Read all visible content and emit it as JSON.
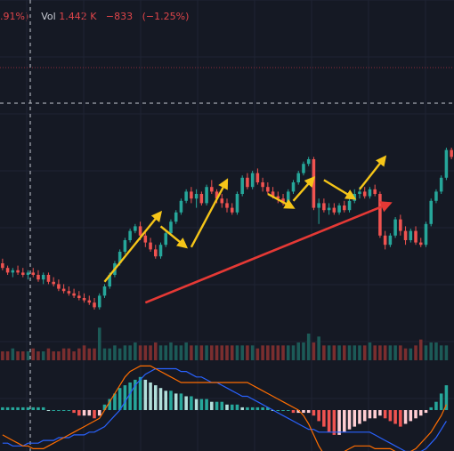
{
  "header": {
    "change_fragment": ".91%)",
    "vol_label": "Vol",
    "vol_value": "1.442 K",
    "vol_change": "−833",
    "vol_change_pct": "(−1.25%)"
  },
  "colors": {
    "background": "#151924",
    "up": "#26a69a",
    "down": "#ef5350",
    "volume_up": "#1c5a57",
    "volume_down": "#7a2e2f",
    "macd_line": "#2962ff",
    "signal_line": "#ff6d00",
    "hist_up_strong": "#26a69a",
    "hist_up_weak": "#b2dfdb",
    "hist_down_strong": "#ef5350",
    "hist_down_weak": "#ffcdd2",
    "annotation_yellow": "#f5c518",
    "annotation_red": "#e53935",
    "price_line": "#8a2a3a",
    "crosshair": "#c8ccd4"
  },
  "chart_data": {
    "type": "candlestick",
    "price_ylim": [
      0,
      100
    ],
    "grid": true,
    "candles": [
      {
        "o": 40,
        "h": 42,
        "l": 37,
        "c": 38
      },
      {
        "o": 38,
        "h": 39,
        "l": 35,
        "c": 36
      },
      {
        "o": 36,
        "h": 38,
        "l": 34,
        "c": 37
      },
      {
        "o": 37,
        "h": 39,
        "l": 35,
        "c": 36
      },
      {
        "o": 36,
        "h": 38,
        "l": 34,
        "c": 35
      },
      {
        "o": 35,
        "h": 37,
        "l": 33,
        "c": 36
      },
      {
        "o": 36,
        "h": 38,
        "l": 34,
        "c": 35
      },
      {
        "o": 35,
        "h": 37,
        "l": 32,
        "c": 33
      },
      {
        "o": 33,
        "h": 36,
        "l": 31,
        "c": 35
      },
      {
        "o": 35,
        "h": 36,
        "l": 31,
        "c": 32
      },
      {
        "o": 32,
        "h": 34,
        "l": 30,
        "c": 31
      },
      {
        "o": 31,
        "h": 33,
        "l": 28,
        "c": 29
      },
      {
        "o": 29,
        "h": 31,
        "l": 27,
        "c": 28
      },
      {
        "o": 28,
        "h": 30,
        "l": 26,
        "c": 27
      },
      {
        "o": 27,
        "h": 29,
        "l": 25,
        "c": 26
      },
      {
        "o": 26,
        "h": 28,
        "l": 24,
        "c": 25
      },
      {
        "o": 25,
        "h": 27,
        "l": 23,
        "c": 24
      },
      {
        "o": 24,
        "h": 26,
        "l": 22,
        "c": 23
      },
      {
        "o": 23,
        "h": 25,
        "l": 20,
        "c": 21
      },
      {
        "o": 21,
        "h": 27,
        "l": 20,
        "c": 26
      },
      {
        "o": 26,
        "h": 31,
        "l": 25,
        "c": 30
      },
      {
        "o": 30,
        "h": 36,
        "l": 29,
        "c": 35
      },
      {
        "o": 35,
        "h": 41,
        "l": 34,
        "c": 40
      },
      {
        "o": 40,
        "h": 46,
        "l": 39,
        "c": 45
      },
      {
        "o": 45,
        "h": 51,
        "l": 44,
        "c": 50
      },
      {
        "o": 50,
        "h": 55,
        "l": 49,
        "c": 54
      },
      {
        "o": 54,
        "h": 57,
        "l": 53,
        "c": 56
      },
      {
        "o": 56,
        "h": 58,
        "l": 50,
        "c": 52
      },
      {
        "o": 52,
        "h": 54,
        "l": 47,
        "c": 49
      },
      {
        "o": 49,
        "h": 51,
        "l": 45,
        "c": 46
      },
      {
        "o": 46,
        "h": 48,
        "l": 42,
        "c": 43
      },
      {
        "o": 43,
        "h": 49,
        "l": 42,
        "c": 48
      },
      {
        "o": 48,
        "h": 54,
        "l": 47,
        "c": 53
      },
      {
        "o": 53,
        "h": 59,
        "l": 52,
        "c": 58
      },
      {
        "o": 58,
        "h": 63,
        "l": 57,
        "c": 62
      },
      {
        "o": 62,
        "h": 68,
        "l": 61,
        "c": 67
      },
      {
        "o": 67,
        "h": 72,
        "l": 66,
        "c": 71
      },
      {
        "o": 71,
        "h": 73,
        "l": 66,
        "c": 68
      },
      {
        "o": 68,
        "h": 72,
        "l": 64,
        "c": 70
      },
      {
        "o": 70,
        "h": 71,
        "l": 65,
        "c": 66
      },
      {
        "o": 66,
        "h": 74,
        "l": 65,
        "c": 73
      },
      {
        "o": 73,
        "h": 76,
        "l": 70,
        "c": 71
      },
      {
        "o": 71,
        "h": 72,
        "l": 66,
        "c": 68
      },
      {
        "o": 68,
        "h": 70,
        "l": 64,
        "c": 66
      },
      {
        "o": 66,
        "h": 68,
        "l": 62,
        "c": 64
      },
      {
        "o": 64,
        "h": 66,
        "l": 61,
        "c": 62
      },
      {
        "o": 62,
        "h": 71,
        "l": 61,
        "c": 70
      },
      {
        "o": 70,
        "h": 78,
        "l": 69,
        "c": 77
      },
      {
        "o": 77,
        "h": 79,
        "l": 72,
        "c": 73
      },
      {
        "o": 73,
        "h": 80,
        "l": 72,
        "c": 79
      },
      {
        "o": 79,
        "h": 81,
        "l": 74,
        "c": 75
      },
      {
        "o": 75,
        "h": 77,
        "l": 71,
        "c": 73
      },
      {
        "o": 73,
        "h": 75,
        "l": 70,
        "c": 71
      },
      {
        "o": 71,
        "h": 73,
        "l": 68,
        "c": 69
      },
      {
        "o": 69,
        "h": 71,
        "l": 66,
        "c": 68
      },
      {
        "o": 68,
        "h": 70,
        "l": 65,
        "c": 66
      },
      {
        "o": 66,
        "h": 72,
        "l": 65,
        "c": 71
      },
      {
        "o": 71,
        "h": 76,
        "l": 70,
        "c": 75
      },
      {
        "o": 75,
        "h": 80,
        "l": 74,
        "c": 79
      },
      {
        "o": 79,
        "h": 84,
        "l": 78,
        "c": 83
      },
      {
        "o": 83,
        "h": 86,
        "l": 82,
        "c": 85
      },
      {
        "o": 85,
        "h": 86,
        "l": 63,
        "c": 64
      },
      {
        "o": 64,
        "h": 68,
        "l": 57,
        "c": 66
      },
      {
        "o": 66,
        "h": 68,
        "l": 62,
        "c": 63
      },
      {
        "o": 63,
        "h": 66,
        "l": 61,
        "c": 64
      },
      {
        "o": 64,
        "h": 66,
        "l": 61,
        "c": 62
      },
      {
        "o": 62,
        "h": 66,
        "l": 61,
        "c": 65
      },
      {
        "o": 65,
        "h": 67,
        "l": 62,
        "c": 63
      },
      {
        "o": 63,
        "h": 68,
        "l": 62,
        "c": 67
      },
      {
        "o": 67,
        "h": 72,
        "l": 66,
        "c": 70
      },
      {
        "o": 70,
        "h": 73,
        "l": 68,
        "c": 71
      },
      {
        "o": 71,
        "h": 73,
        "l": 68,
        "c": 69
      },
      {
        "o": 69,
        "h": 73,
        "l": 68,
        "c": 72
      },
      {
        "o": 72,
        "h": 74,
        "l": 69,
        "c": 70
      },
      {
        "o": 70,
        "h": 71,
        "l": 51,
        "c": 52
      },
      {
        "o": 52,
        "h": 54,
        "l": 46,
        "c": 48
      },
      {
        "o": 48,
        "h": 53,
        "l": 47,
        "c": 52
      },
      {
        "o": 52,
        "h": 60,
        "l": 51,
        "c": 59
      },
      {
        "o": 59,
        "h": 61,
        "l": 52,
        "c": 54
      },
      {
        "o": 54,
        "h": 56,
        "l": 48,
        "c": 50
      },
      {
        "o": 50,
        "h": 55,
        "l": 49,
        "c": 54
      },
      {
        "o": 54,
        "h": 56,
        "l": 48,
        "c": 49
      },
      {
        "o": 49,
        "h": 51,
        "l": 47,
        "c": 48
      },
      {
        "o": 48,
        "h": 58,
        "l": 47,
        "c": 57
      },
      {
        "o": 57,
        "h": 68,
        "l": 56,
        "c": 67
      },
      {
        "o": 67,
        "h": 72,
        "l": 66,
        "c": 71
      },
      {
        "o": 71,
        "h": 78,
        "l": 70,
        "c": 77
      },
      {
        "o": 77,
        "h": 90,
        "l": 76,
        "c": 89
      },
      {
        "o": 89,
        "h": 90,
        "l": 85,
        "c": 86
      }
    ],
    "volume": [
      3,
      3,
      4,
      3,
      3,
      3,
      4,
      3,
      3,
      4,
      3,
      3,
      4,
      4,
      3,
      4,
      5,
      4,
      4,
      5,
      4,
      4,
      5,
      4,
      5,
      5,
      6,
      5,
      5,
      5,
      6,
      5,
      5,
      6,
      5,
      5,
      6,
      5,
      5,
      5,
      5,
      5,
      5,
      5,
      5,
      5,
      5,
      5,
      5,
      5,
      4,
      5,
      5,
      5,
      5,
      5,
      5,
      5,
      6,
      6,
      8,
      6,
      6,
      5,
      5,
      5,
      5,
      5,
      5,
      5,
      5,
      5,
      6,
      5,
      5,
      5,
      5,
      5,
      5,
      4,
      4,
      5,
      5,
      5,
      6,
      6,
      5,
      5
    ],
    "volume_ylim": [
      0,
      12
    ],
    "volume_spikes": [
      {
        "i": 19,
        "v": 11
      },
      {
        "i": 60,
        "v": 9
      },
      {
        "i": 62,
        "v": 8
      },
      {
        "i": 82,
        "v": 7
      }
    ],
    "macd": {
      "ylim": [
        -20,
        20
      ],
      "histogram": [
        1,
        1,
        1,
        1,
        1,
        1,
        1,
        1,
        1,
        0,
        0,
        0,
        0,
        0,
        -1,
        -2,
        -2,
        -2,
        -3,
        -2,
        2,
        4,
        6,
        8,
        9,
        10,
        11,
        12,
        11,
        10,
        9,
        8,
        7,
        7,
        6,
        6,
        5,
        5,
        4,
        4,
        4,
        3,
        3,
        3,
        2,
        2,
        2,
        1,
        1,
        1,
        1,
        1,
        1,
        0,
        0,
        0,
        0,
        -1,
        -1,
        -1,
        -1,
        -2,
        -4,
        -6,
        -8,
        -9,
        -9,
        -8,
        -7,
        -6,
        -5,
        -4,
        -3,
        -3,
        -2,
        -3,
        -4,
        -5,
        -6,
        -5,
        -4,
        -3,
        -2,
        -1,
        1,
        3,
        6,
        9
      ],
      "macd_line": [
        -12,
        -12,
        -13,
        -13,
        -13,
        -12,
        -12,
        -12,
        -11,
        -11,
        -11,
        -10,
        -10,
        -10,
        -9,
        -9,
        -9,
        -8,
        -8,
        -7,
        -6,
        -4,
        -2,
        0,
        3,
        6,
        9,
        11,
        13,
        14,
        15,
        15,
        15,
        15,
        15,
        14,
        14,
        13,
        12,
        12,
        11,
        10,
        10,
        9,
        8,
        7,
        6,
        5,
        5,
        4,
        3,
        2,
        1,
        0,
        -1,
        -2,
        -3,
        -4,
        -5,
        -6,
        -7,
        -7,
        -8,
        -8,
        -8,
        -8,
        -8,
        -8,
        -8,
        -8,
        -8,
        -8,
        -8,
        -9,
        -10,
        -11,
        -12,
        -13,
        -14,
        -15,
        -15,
        -15,
        -15,
        -14,
        -12,
        -10,
        -7,
        -4
      ],
      "signal_line": [
        -9,
        -10,
        -11,
        -12,
        -13,
        -13,
        -14,
        -14,
        -14,
        -13,
        -12,
        -11,
        -10,
        -9,
        -8,
        -7,
        -6,
        -5,
        -4,
        -3,
        0,
        3,
        6,
        9,
        12,
        14,
        15,
        16,
        16,
        16,
        15,
        14,
        13,
        12,
        11,
        10,
        10,
        10,
        10,
        10,
        10,
        10,
        10,
        10,
        10,
        10,
        10,
        10,
        10,
        9,
        8,
        7,
        6,
        5,
        4,
        3,
        2,
        1,
        0,
        -2,
        -5,
        -9,
        -13,
        -16,
        -17,
        -17,
        -16,
        -15,
        -14,
        -13,
        -13,
        -13,
        -13,
        -14,
        -14,
        -14,
        -14,
        -15,
        -16,
        -16,
        -15,
        -14,
        -12,
        -10,
        -8,
        -5,
        -2,
        2
      ]
    },
    "annotations": {
      "yellow_arrows": [
        {
          "from": [
            20,
            32
          ],
          "to": [
            31,
            62
          ]
        },
        {
          "from": [
            31,
            56
          ],
          "to": [
            36,
            47
          ]
        },
        {
          "from": [
            37,
            47
          ],
          "to": [
            44,
            76
          ]
        },
        {
          "from": [
            52,
            70
          ],
          "to": [
            57,
            64
          ]
        },
        {
          "from": [
            57,
            67
          ],
          "to": [
            61,
            77
          ]
        },
        {
          "from": [
            63,
            76
          ],
          "to": [
            69,
            68
          ]
        },
        {
          "from": [
            70,
            72
          ],
          "to": [
            75,
            86
          ]
        }
      ],
      "red_arrow": {
        "from": [
          28,
          23
        ],
        "to": [
          76,
          66
        ]
      }
    }
  }
}
